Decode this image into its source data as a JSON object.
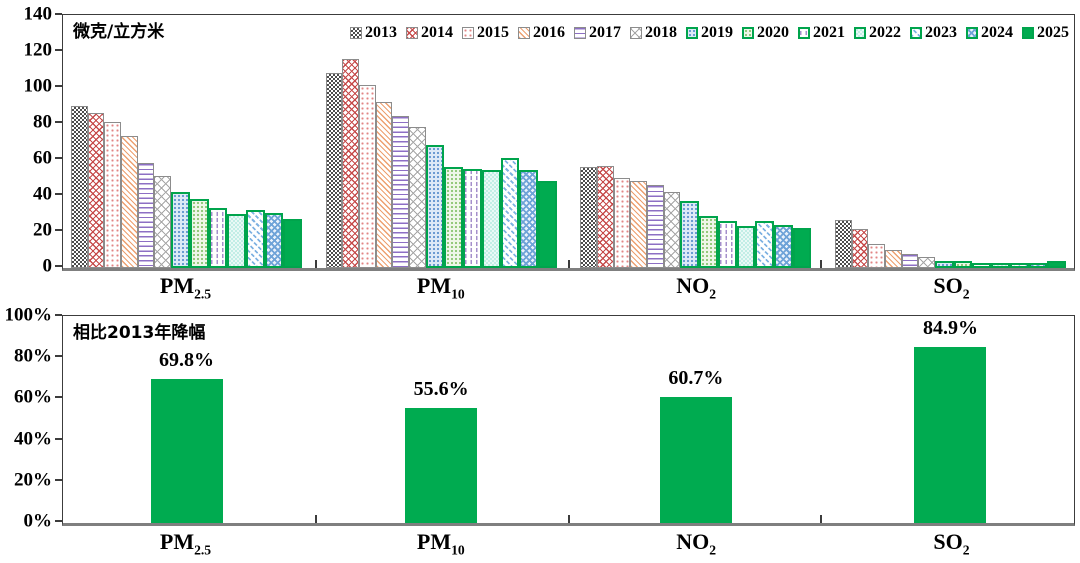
{
  "colors": {
    "accent_green": "#00AB50",
    "green_border": "#00A44C",
    "gray_border": "#8C8C8C",
    "frame": "#3C3C3C",
    "baseline": "#7F7F7F",
    "text": "#000000"
  },
  "chart_data": [
    {
      "id": "annual-concentration",
      "type": "bar",
      "unit_label": "微克/立方米",
      "grid": false,
      "legend_position": "top-inside-right",
      "ylim": [
        0,
        140
      ],
      "ytick_values": [
        0,
        20,
        40,
        60,
        80,
        100,
        120,
        140
      ],
      "ytick_labels": [
        "0",
        "20",
        "40",
        "60",
        "80",
        "100",
        "120",
        "140"
      ],
      "categories": [
        "PM2.5",
        "PM10",
        "NO2",
        "SO2"
      ],
      "category_display": [
        {
          "base": "PM",
          "sub": "2.5"
        },
        {
          "base": "PM",
          "sub": "10"
        },
        {
          "base": "NO",
          "sub": "2"
        },
        {
          "base": "SO",
          "sub": "2"
        }
      ],
      "series": [
        {
          "name": "2013",
          "swatch": "pat-2013",
          "border": "gray",
          "values": [
            89.5,
            108.1,
            56.0,
            26.5
          ]
        },
        {
          "name": "2014",
          "swatch": "pat-2014",
          "border": "gray",
          "values": [
            85.9,
            115.8,
            56.7,
            21.8
          ]
        },
        {
          "name": "2015",
          "swatch": "pat-2015",
          "border": "gray",
          "values": [
            80.6,
            101.5,
            50.0,
            13.5
          ]
        },
        {
          "name": "2016",
          "swatch": "pat-2016",
          "border": "gray",
          "values": [
            73,
            92,
            48,
            10
          ]
        },
        {
          "name": "2017",
          "swatch": "pat-2017",
          "border": "gray",
          "values": [
            58,
            84,
            46,
            8
          ]
        },
        {
          "name": "2018",
          "swatch": "pat-2018",
          "border": "gray",
          "values": [
            51,
            78,
            42,
            6
          ]
        },
        {
          "name": "2019",
          "swatch": "pat-2019",
          "border": "green",
          "values": [
            42,
            68,
            37,
            4
          ]
        },
        {
          "name": "2020",
          "swatch": "pat-2020",
          "border": "green",
          "values": [
            38,
            56,
            29,
            4
          ]
        },
        {
          "name": "2021",
          "swatch": "pat-2021",
          "border": "green",
          "values": [
            33,
            55,
            26,
            3
          ]
        },
        {
          "name": "2022",
          "swatch": "pat-2022",
          "border": "green",
          "values": [
            30,
            54,
            23,
            3
          ]
        },
        {
          "name": "2023",
          "swatch": "pat-2023",
          "border": "green",
          "values": [
            32,
            61,
            26,
            3
          ]
        },
        {
          "name": "2024",
          "swatch": "pat-2024",
          "border": "green",
          "values": [
            30.5,
            54,
            24,
            3
          ]
        },
        {
          "name": "2025",
          "swatch": "pat-2025",
          "border": "green",
          "values": [
            27,
            48,
            22,
            4
          ]
        }
      ]
    },
    {
      "id": "reduction-vs-2013",
      "type": "bar",
      "title": "相比2013年降幅",
      "grid": false,
      "ylim": [
        0,
        100
      ],
      "ytick_values": [
        0,
        20,
        40,
        60,
        80,
        100
      ],
      "ytick_labels": [
        "0%",
        "20%",
        "40%",
        "60%",
        "80%",
        "100%"
      ],
      "categories": [
        "PM2.5",
        "PM10",
        "NO2",
        "SO2"
      ],
      "category_display": [
        {
          "base": "PM",
          "sub": "2.5"
        },
        {
          "base": "PM",
          "sub": "10"
        },
        {
          "base": "NO",
          "sub": "2"
        },
        {
          "base": "SO",
          "sub": "2"
        }
      ],
      "values": [
        69.8,
        55.6,
        60.7,
        84.9
      ],
      "value_labels": [
        "69.8%",
        "55.6%",
        "60.7%",
        "84.9%"
      ],
      "bar_color": "#00AB50"
    }
  ]
}
